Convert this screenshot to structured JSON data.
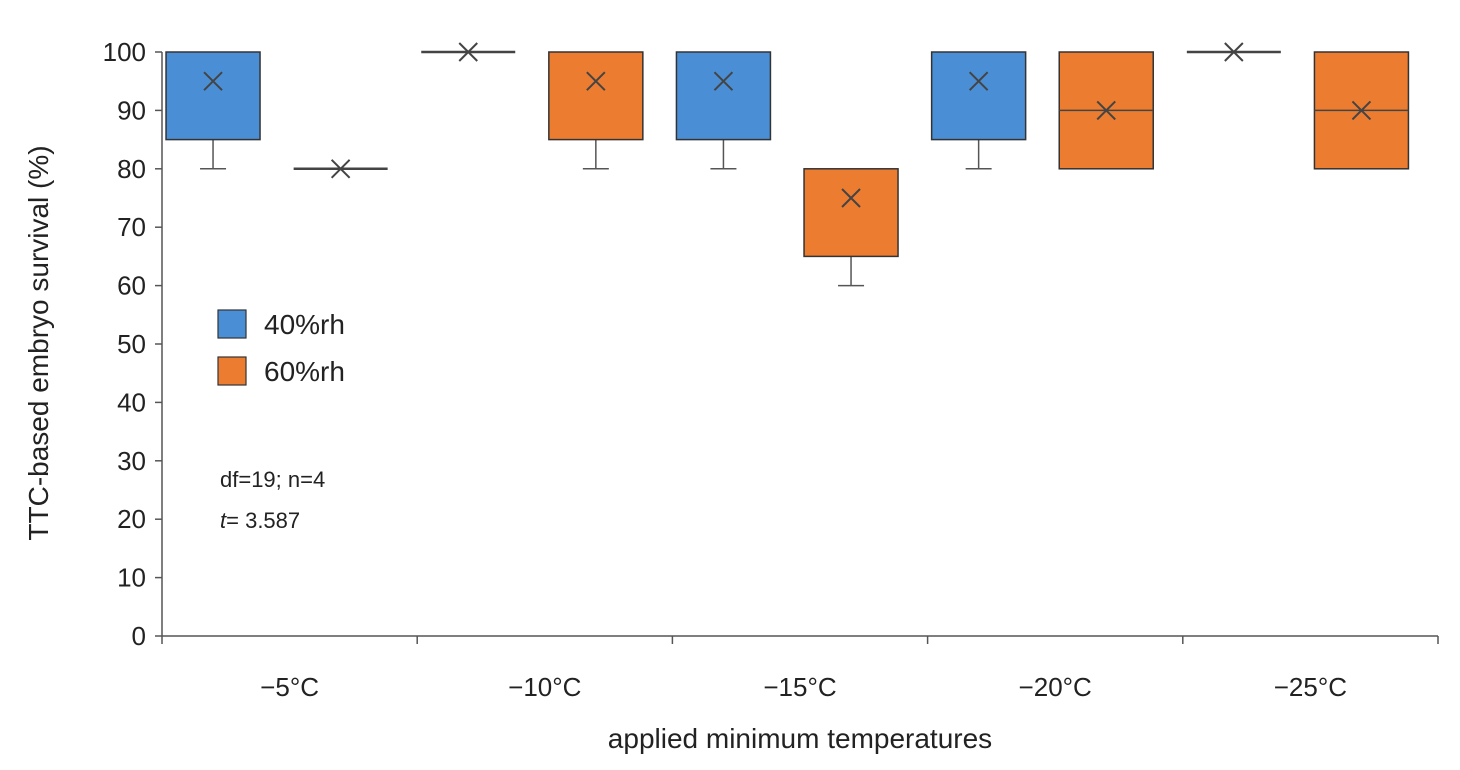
{
  "chart_data": {
    "type": "box",
    "title": "",
    "xlabel": "applied minimum temperatures",
    "ylabel": "TTC-based embryo survival (%)",
    "ylim": [
      0,
      100
    ],
    "yticks": [
      0,
      10,
      20,
      30,
      40,
      50,
      60,
      70,
      80,
      90,
      100
    ],
    "yticks_text": [
      "0",
      "10",
      "20",
      "30",
      "40",
      "50",
      "60",
      "70",
      "80",
      "90",
      "100"
    ],
    "categories": [
      "−5°C",
      "−10°C",
      "−15°C",
      "−20°C",
      "−25°C"
    ],
    "legend_position": "middle-left",
    "series": [
      {
        "name": "40%rh",
        "color": "#4a8fd6",
        "boxes": [
          {
            "min": 80,
            "q1": 85,
            "median": 100,
            "q3": 100,
            "max": 100,
            "mean": 95
          },
          {
            "min": 100,
            "q1": 100,
            "median": 100,
            "q3": 100,
            "max": 100,
            "mean": 100
          },
          {
            "min": 80,
            "q1": 85,
            "median": 100,
            "q3": 100,
            "max": 100,
            "mean": 95
          },
          {
            "min": 80,
            "q1": 85,
            "median": 100,
            "q3": 100,
            "max": 100,
            "mean": 95
          },
          {
            "min": 100,
            "q1": 100,
            "median": 100,
            "q3": 100,
            "max": 100,
            "mean": 100
          }
        ]
      },
      {
        "name": "60%rh",
        "color": "#ec7c30",
        "boxes": [
          {
            "min": 80,
            "q1": 80,
            "median": 80,
            "q3": 80,
            "max": 80,
            "mean": 80
          },
          {
            "min": 80,
            "q1": 85,
            "median": 100,
            "q3": 100,
            "max": 100,
            "mean": 95
          },
          {
            "min": 60,
            "q1": 65,
            "median": 80,
            "q3": 80,
            "max": 80,
            "mean": 75
          },
          {
            "min": 80,
            "q1": 80,
            "median": 90,
            "q3": 100,
            "max": 100,
            "mean": 90
          },
          {
            "min": 80,
            "q1": 80,
            "median": 90,
            "q3": 100,
            "max": 100,
            "mean": 90
          }
        ]
      }
    ],
    "annotations": [
      "df=19; n=4",
      "= 3.587"
    ],
    "annotation_t": "t"
  }
}
